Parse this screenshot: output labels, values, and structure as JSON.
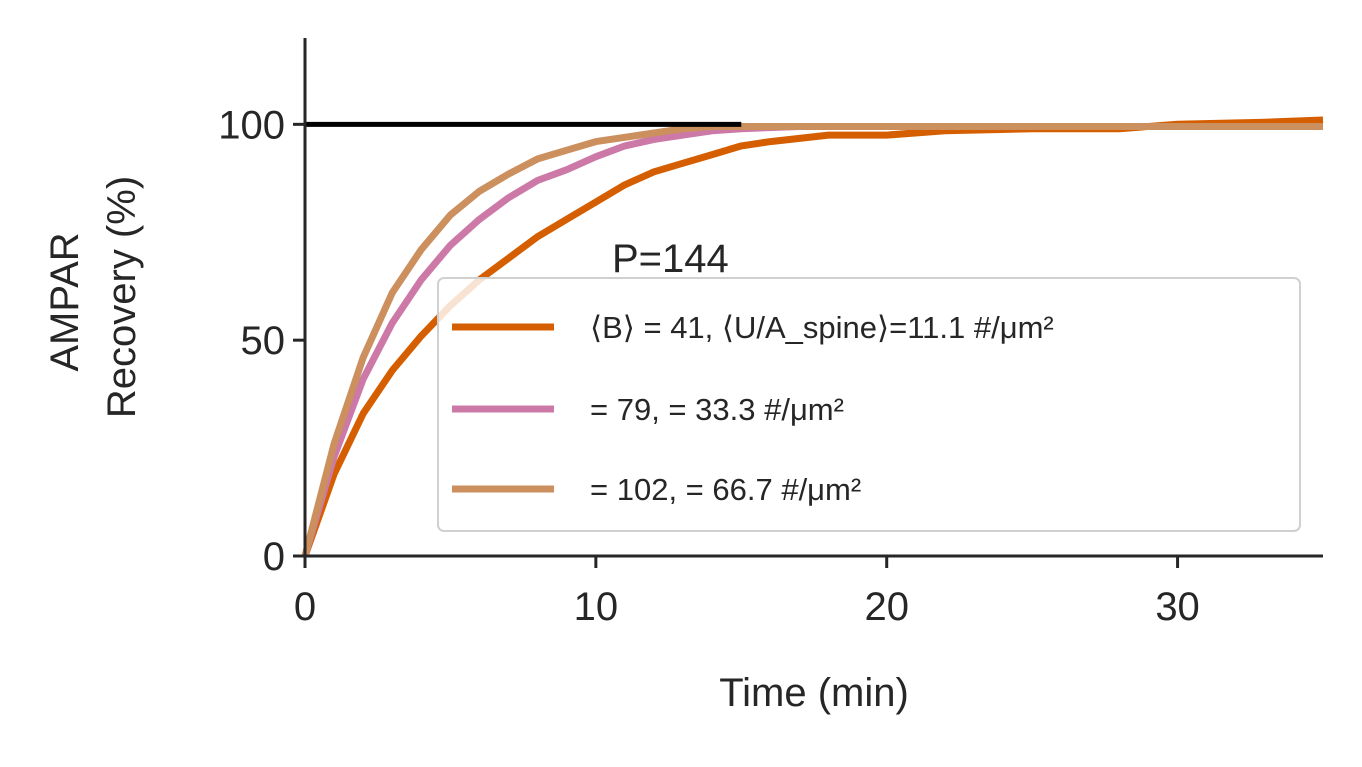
{
  "chart_data": {
    "type": "line",
    "xlabel": "Time (min)",
    "ylabel_lines": [
      "AMPAR",
      "Recovery (%)"
    ],
    "xlim": [
      0,
      35
    ],
    "ylim": [
      0,
      120
    ],
    "xticks": [
      0,
      10,
      20,
      30
    ],
    "xtick_labels": [
      "0",
      "10",
      "20",
      "30"
    ],
    "yticks": [
      0,
      50,
      100
    ],
    "ytick_labels": [
      "0",
      "50",
      "100"
    ],
    "grid": false,
    "legend_position": "lower-right",
    "annotation": "P=144",
    "reference_line": {
      "y": 100,
      "x_end": 15,
      "color": "#000000"
    },
    "series": [
      {
        "name": "⟨B⟩ = 41, ⟨U/A_spine⟩=11.1 #/μm²",
        "color": "#d55e00",
        "x": [
          0,
          1,
          2,
          3,
          4,
          5,
          6,
          7,
          8,
          9,
          10,
          11,
          12,
          13,
          14,
          15,
          16,
          18,
          20,
          22,
          25,
          28,
          30,
          33,
          35
        ],
        "y": [
          0,
          19,
          33,
          43,
          51,
          58,
          64,
          69,
          74,
          78,
          82,
          86,
          89,
          91,
          93,
          95,
          96,
          97.5,
          97.5,
          98.5,
          99,
          99,
          100,
          100.5,
          101
        ]
      },
      {
        "name": "= 79, = 33.3 #/μm²",
        "color": "#cc79a7",
        "x": [
          0,
          1,
          2,
          3,
          4,
          5,
          6,
          7,
          8,
          9,
          10,
          11,
          12,
          13,
          14,
          15,
          17,
          20,
          25,
          30,
          33,
          35
        ],
        "y": [
          0,
          23,
          41,
          54,
          64,
          72,
          78,
          83,
          87,
          89.5,
          92.5,
          95,
          96.5,
          97.5,
          98.5,
          99,
          99.5,
          99.5,
          99.5,
          99.5,
          99.5,
          99.5
        ]
      },
      {
        "name": "= 102, = 66.7 #/μm²",
        "color": "#cc8f5e",
        "x": [
          0,
          1,
          2,
          3,
          4,
          5,
          6,
          7,
          8,
          9,
          10,
          11,
          12,
          13,
          14,
          15,
          17,
          20,
          25,
          30,
          35
        ],
        "y": [
          0,
          26,
          46,
          61,
          71,
          79,
          84.5,
          88.5,
          92,
          94,
          96,
          97,
          98,
          99,
          99.5,
          99.5,
          99.5,
          99.5,
          99.5,
          99.5,
          99.5
        ]
      }
    ]
  }
}
